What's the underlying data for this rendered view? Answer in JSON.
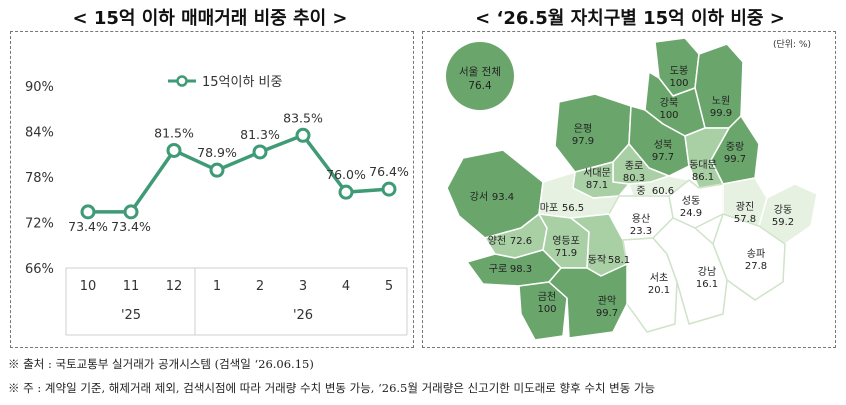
{
  "left_title": "< 15억 이하 매매거래 비중 추이 >",
  "right_title": "< ‘26.5월 자치구별 15억 이하 비중 >",
  "chart_data": [
    {
      "type": "line",
      "title": "< 15억 이하 매매거래 비중 추이 >",
      "categories": [
        "10",
        "11",
        "12",
        "1",
        "2",
        "3",
        "4",
        "5"
      ],
      "year_labels": [
        {
          "label": "'25",
          "span": [
            "10",
            "12"
          ]
        },
        {
          "label": "'26",
          "span": [
            "1",
            "5"
          ]
        }
      ],
      "y_ticks": [
        "90%",
        "84%",
        "78%",
        "72%",
        "66%"
      ],
      "ylim": [
        66,
        90
      ],
      "legend": "15억이하 비중",
      "legend_position": "top",
      "series": [
        {
          "name": "15억이하 비중",
          "values": [
            73.4,
            73.4,
            81.5,
            78.9,
            81.3,
            83.5,
            76.0,
            76.4
          ],
          "labels": [
            "73.4%",
            "73.4%",
            "81.5%",
            "78.9%",
            "81.3%",
            "83.5%",
            "76.0%",
            "76.4%"
          ]
        }
      ],
      "color": "#3f9a76"
    },
    {
      "type": "map",
      "title": "< ‘26.5월 자치구별 15억 이하 비중 >",
      "unit": "(단위: %)",
      "total": {
        "name": "서울 전체",
        "value": "76.4"
      },
      "districts": [
        {
          "name": "도봉",
          "value": "100"
        },
        {
          "name": "노원",
          "value": "99.9"
        },
        {
          "name": "강북",
          "value": "100"
        },
        {
          "name": "은평",
          "value": "97.9"
        },
        {
          "name": "성북",
          "value": "97.7"
        },
        {
          "name": "중랑",
          "value": "99.7"
        },
        {
          "name": "종로",
          "value": "80.3"
        },
        {
          "name": "서대문",
          "value": "87.1"
        },
        {
          "name": "동대문",
          "value": "86.1"
        },
        {
          "name": "중",
          "value": "60.6"
        },
        {
          "name": "강서",
          "value": "93.4"
        },
        {
          "name": "마포",
          "value": "56.5"
        },
        {
          "name": "성동",
          "value": "24.9"
        },
        {
          "name": "광진",
          "value": "57.8"
        },
        {
          "name": "용산",
          "value": "23.3"
        },
        {
          "name": "강동",
          "value": "59.2"
        },
        {
          "name": "양천",
          "value": "72.6"
        },
        {
          "name": "영등포",
          "value": "71.9"
        },
        {
          "name": "구로",
          "value": "98.3"
        },
        {
          "name": "동작",
          "value": "58.1"
        },
        {
          "name": "송파",
          "value": "27.8"
        },
        {
          "name": "서초",
          "value": "20.1"
        },
        {
          "name": "강남",
          "value": "16.1"
        },
        {
          "name": "금천",
          "value": "100"
        },
        {
          "name": "관악",
          "value": "99.7"
        }
      ],
      "colors": {
        "dark": "#6aa56c",
        "mid": "#a9d0a5",
        "light": "#e6f1e2",
        "pale": "#ffffff",
        "border": "#ffffff"
      }
    }
  ],
  "notes": [
    "※ 출처 : 국토교통부 실거래가 공개시스템 (검색일 ‘26.06.15)",
    "※ 주 : 계약일 기준, 해제거래 제외, 검색시점에 따라 거래량 수치 변동 가능, ‘26.5월 거래량은 신고기한 미도래로 향후 수치 변동 가능"
  ]
}
